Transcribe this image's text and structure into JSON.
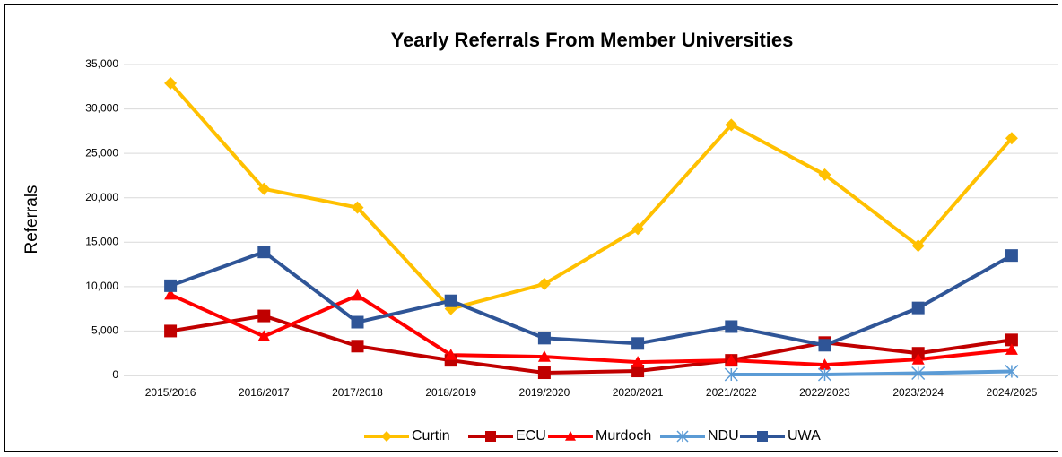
{
  "chart_data": {
    "type": "line",
    "title": "Yearly Referrals From Member Universities",
    "ylabel": "Referrals",
    "categories": [
      "2015/2016",
      "2016/2017",
      "2017/2018",
      "2018/2019",
      "2019/2020",
      "2020/2021",
      "2021/2022",
      "2022/2023",
      "2023/2024",
      "2024/2025"
    ],
    "series": [
      {
        "name": "Curtin",
        "color": "#FFC000",
        "marker": "diamond",
        "values": [
          32900,
          21000,
          18900,
          7500,
          10300,
          16500,
          28200,
          22600,
          14600,
          26700
        ]
      },
      {
        "name": "ECU",
        "color": "#C00000",
        "marker": "square",
        "values": [
          5000,
          6700,
          3300,
          1700,
          300,
          500,
          1700,
          3700,
          2500,
          4000
        ]
      },
      {
        "name": "Murdoch",
        "color": "#FF0000",
        "marker": "triangle",
        "values": [
          9100,
          4400,
          9000,
          2300,
          2100,
          1500,
          1700,
          1200,
          1800,
          2900
        ]
      },
      {
        "name": "NDU",
        "color": "#5B9BD5",
        "marker": "asterisk",
        "values": [
          null,
          null,
          null,
          null,
          null,
          null,
          100,
          100,
          250,
          450
        ]
      },
      {
        "name": "UWA",
        "color": "#2F5597",
        "marker": "square",
        "values": [
          10100,
          13900,
          6000,
          8400,
          4200,
          3600,
          5500,
          3400,
          7600,
          13500
        ]
      }
    ],
    "ylim": [
      0,
      35000
    ],
    "yticks": [
      0,
      {
        "value": 5000,
        "label": "5,000"
      },
      {
        "value": 10000,
        "label": "10,000"
      },
      {
        "value": 15000,
        "label": "15,000"
      },
      {
        "value": 20000,
        "label": "20,000"
      },
      {
        "value": 25000,
        "label": "25,000"
      },
      {
        "value": 30000,
        "label": "30,000"
      },
      {
        "value": 35000,
        "label": "35,000"
      }
    ],
    "grid": true,
    "legend": "bottom"
  }
}
